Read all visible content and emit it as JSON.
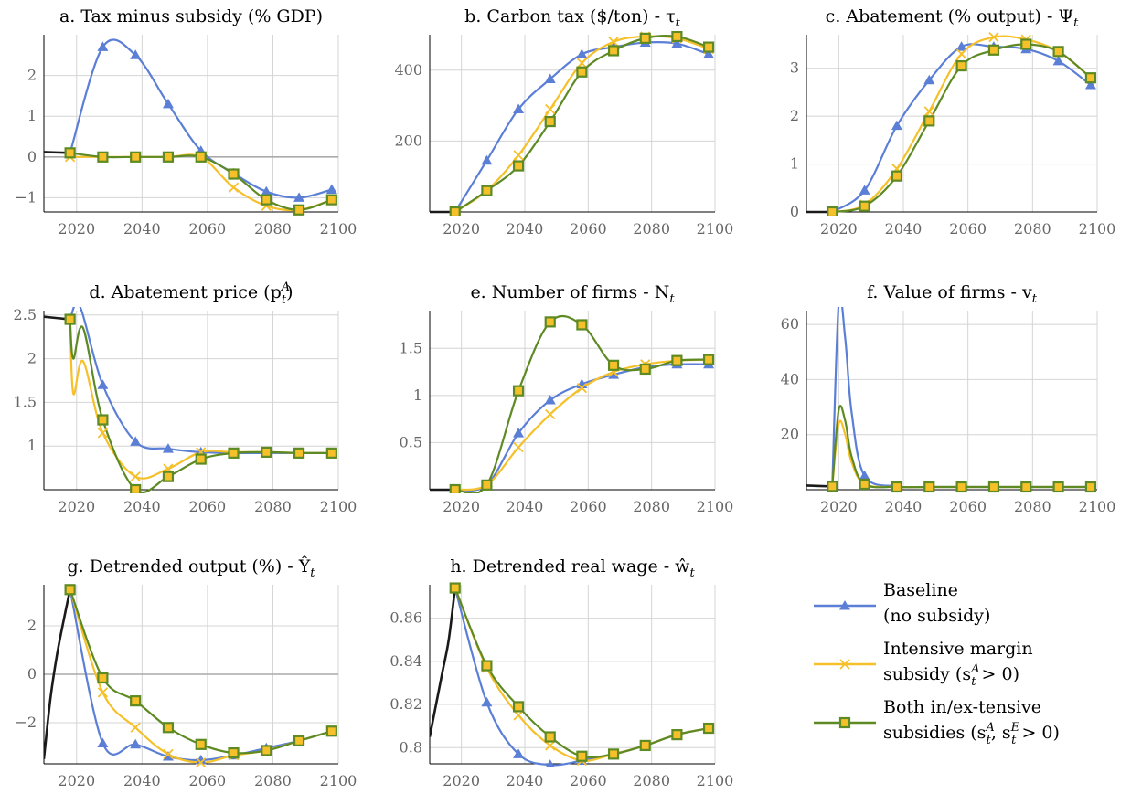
{
  "chart_data": [
    {
      "id": "a",
      "type": "line",
      "title": "a. Tax minus subsidy (% GDP)",
      "xlim": [
        2010,
        2100
      ],
      "ylim": [
        -1.35,
        3.0
      ],
      "xticks": [
        2020,
        2040,
        2060,
        2080,
        2100
      ],
      "yticks": [
        -1,
        0,
        1,
        2
      ],
      "ytick_labels": [
        "−1",
        "0",
        "1",
        "2"
      ],
      "zero_line": true,
      "history": {
        "x": [
          2010,
          2018
        ],
        "y": [
          0.12,
          0.1
        ]
      },
      "series": [
        {
          "key": "baseline",
          "x": [
            2018,
            2028,
            2038,
            2048,
            2058,
            2068,
            2078,
            2088,
            2098
          ],
          "y": [
            0.1,
            2.7,
            2.5,
            1.3,
            0.15,
            -0.4,
            -0.85,
            -1.0,
            -0.8
          ]
        },
        {
          "key": "intensive",
          "x": [
            2018,
            2028,
            2038,
            2048,
            2058,
            2068,
            2078,
            2088,
            2098
          ],
          "y": [
            0.0,
            0.0,
            0.0,
            0.0,
            0.0,
            -0.75,
            -1.2,
            -1.3,
            -1.05
          ]
        },
        {
          "key": "both",
          "x": [
            2018,
            2028,
            2038,
            2048,
            2058,
            2068,
            2078,
            2088,
            2098
          ],
          "y": [
            0.1,
            0.0,
            0.0,
            0.0,
            0.0,
            -0.42,
            -1.05,
            -1.3,
            -1.05
          ]
        }
      ]
    },
    {
      "id": "b",
      "type": "line",
      "title": "b. Carbon tax ($/ton) - τ",
      "title_sub": "t",
      "xlim": [
        2010,
        2100
      ],
      "ylim": [
        0,
        500
      ],
      "xticks": [
        2020,
        2040,
        2060,
        2080,
        2100
      ],
      "yticks": [
        200,
        400
      ],
      "ytick_labels": [
        "200",
        "400"
      ],
      "zero_line": false,
      "history": {
        "x": [
          2010,
          2018
        ],
        "y": [
          0,
          0
        ]
      },
      "series": [
        {
          "key": "baseline",
          "x": [
            2018,
            2028,
            2038,
            2048,
            2058,
            2068,
            2078,
            2088,
            2098
          ],
          "y": [
            0,
            145,
            290,
            375,
            445,
            465,
            478,
            475,
            445
          ]
        },
        {
          "key": "intensive",
          "x": [
            2018,
            2028,
            2038,
            2048,
            2058,
            2068,
            2078,
            2088,
            2098
          ],
          "y": [
            0,
            60,
            160,
            290,
            420,
            480,
            495,
            490,
            460
          ]
        },
        {
          "key": "both",
          "x": [
            2018,
            2028,
            2038,
            2048,
            2058,
            2068,
            2078,
            2088,
            2098
          ],
          "y": [
            0,
            60,
            130,
            255,
            395,
            455,
            490,
            495,
            465
          ]
        }
      ]
    },
    {
      "id": "c",
      "type": "line",
      "title": "c. Abatement (% output) - Ψ",
      "title_sub": "t",
      "xlim": [
        2010,
        2100
      ],
      "ylim": [
        0,
        3.7
      ],
      "xticks": [
        2020,
        2040,
        2060,
        2080,
        2100
      ],
      "yticks": [
        0,
        1,
        2,
        3
      ],
      "ytick_labels": [
        "0",
        "1",
        "2",
        "3"
      ],
      "zero_line": false,
      "history": {
        "x": [
          2010,
          2018
        ],
        "y": [
          0,
          0
        ]
      },
      "series": [
        {
          "key": "baseline",
          "x": [
            2018,
            2028,
            2038,
            2048,
            2058,
            2068,
            2078,
            2088,
            2098
          ],
          "y": [
            0,
            0.45,
            1.8,
            2.75,
            3.45,
            3.45,
            3.4,
            3.15,
            2.65
          ]
        },
        {
          "key": "intensive",
          "x": [
            2018,
            2028,
            2038,
            2048,
            2058,
            2068,
            2078,
            2088,
            2098
          ],
          "y": [
            0,
            0.15,
            0.9,
            2.1,
            3.3,
            3.65,
            3.6,
            3.35,
            2.8
          ]
        },
        {
          "key": "both",
          "x": [
            2018,
            2028,
            2038,
            2048,
            2058,
            2068,
            2078,
            2088,
            2098
          ],
          "y": [
            0,
            0.12,
            0.75,
            1.9,
            3.05,
            3.38,
            3.5,
            3.35,
            2.8
          ]
        }
      ]
    },
    {
      "id": "d",
      "type": "line",
      "title": "d. Abatement price (p",
      "title_sup": "A",
      "title_sub": "t",
      "title_tail": ")",
      "xlim": [
        2010,
        2100
      ],
      "ylim": [
        0.5,
        2.55
      ],
      "xticks": [
        2020,
        2040,
        2060,
        2080,
        2100
      ],
      "yticks": [
        1,
        1.5,
        2,
        2.5
      ],
      "ytick_labels": [
        "1",
        "1.5",
        "2",
        "2.5"
      ],
      "zero_line": false,
      "history": {
        "x": [
          2010,
          2018
        ],
        "y": [
          2.48,
          2.45
        ]
      },
      "series": [
        {
          "key": "baseline",
          "x": [
            2018,
            2021,
            2028,
            2038,
            2048,
            2058,
            2068,
            2078,
            2088,
            2098
          ],
          "y": [
            2.45,
            2.6,
            1.7,
            1.05,
            0.97,
            0.93,
            0.92,
            0.92,
            0.92,
            0.92
          ]
        },
        {
          "key": "intensive",
          "x": [
            2018,
            2019,
            2022,
            2028,
            2038,
            2048,
            2058,
            2068,
            2078,
            2088,
            2098
          ],
          "y": [
            2.45,
            1.6,
            1.97,
            1.15,
            0.65,
            0.74,
            0.93,
            0.93,
            0.93,
            0.92,
            0.92
          ]
        },
        {
          "key": "both",
          "x": [
            2018,
            2019,
            2022,
            2028,
            2038,
            2048,
            2058,
            2068,
            2078,
            2088,
            2098
          ],
          "y": [
            2.45,
            2.0,
            2.35,
            1.3,
            0.5,
            0.65,
            0.85,
            0.92,
            0.93,
            0.92,
            0.92
          ]
        }
      ]
    },
    {
      "id": "e",
      "type": "line",
      "title": "e. Number of firms - N",
      "title_sub": "t",
      "xlim": [
        2010,
        2100
      ],
      "ylim": [
        0,
        1.9
      ],
      "xticks": [
        2020,
        2040,
        2060,
        2080,
        2100
      ],
      "yticks": [
        0.5,
        1,
        1.5
      ],
      "ytick_labels": [
        "0.5",
        "1",
        "1.5"
      ],
      "zero_line": false,
      "history": {
        "x": [
          2010,
          2018
        ],
        "y": [
          0,
          0
        ]
      },
      "series": [
        {
          "key": "baseline",
          "x": [
            2018,
            2028,
            2038,
            2048,
            2058,
            2068,
            2078,
            2088,
            2098
          ],
          "y": [
            0,
            0.05,
            0.6,
            0.95,
            1.12,
            1.22,
            1.3,
            1.33,
            1.33
          ]
        },
        {
          "key": "intensive",
          "x": [
            2018,
            2028,
            2038,
            2048,
            2058,
            2068,
            2078,
            2088,
            2098
          ],
          "y": [
            0,
            0.05,
            0.45,
            0.8,
            1.08,
            1.25,
            1.33,
            1.37,
            1.38
          ]
        },
        {
          "key": "both",
          "x": [
            2018,
            2028,
            2038,
            2048,
            2058,
            2068,
            2078,
            2088,
            2098
          ],
          "y": [
            0,
            0.05,
            1.05,
            1.78,
            1.75,
            1.32,
            1.28,
            1.37,
            1.38
          ]
        }
      ]
    },
    {
      "id": "f",
      "type": "line",
      "title": "f. Value of firms - v",
      "title_sub": "t",
      "xlim": [
        2010,
        2100
      ],
      "ylim": [
        0,
        65
      ],
      "xticks": [
        2020,
        2040,
        2060,
        2080,
        2100
      ],
      "yticks": [
        20,
        40,
        60
      ],
      "ytick_labels": [
        "20",
        "40",
        "60"
      ],
      "zero_line": false,
      "history": {
        "x": [
          2010,
          2018
        ],
        "y": [
          1.5,
          1.2
        ]
      },
      "series": [
        {
          "key": "baseline",
          "x": [
            2018,
            2020,
            2022,
            2024,
            2028,
            2038,
            2048,
            2058,
            2068,
            2078,
            2088,
            2098
          ],
          "y": [
            1.2,
            68,
            55,
            28,
            5,
            1.2,
            1,
            1,
            1,
            1,
            1,
            1
          ]
        },
        {
          "key": "intensive",
          "x": [
            2018,
            2020,
            2022,
            2024,
            2028,
            2038,
            2048,
            2058,
            2068,
            2078,
            2088,
            2098
          ],
          "y": [
            1.2,
            24,
            20,
            10,
            2,
            1,
            1,
            1,
            1,
            1,
            1,
            1
          ]
        },
        {
          "key": "both",
          "x": [
            2018,
            2020,
            2022,
            2024,
            2028,
            2038,
            2048,
            2058,
            2068,
            2078,
            2088,
            2098
          ],
          "y": [
            1.2,
            29,
            25,
            12,
            2,
            1,
            1,
            1,
            1,
            1,
            1,
            1
          ]
        }
      ]
    },
    {
      "id": "g",
      "type": "line",
      "title": "g. Detrended output (%) - Ŷ",
      "title_sub": "t",
      "xlim": [
        2010,
        2100
      ],
      "ylim": [
        -3.7,
        3.7
      ],
      "xticks": [
        2020,
        2040,
        2060,
        2080,
        2100
      ],
      "yticks": [
        -2,
        0,
        2
      ],
      "ytick_labels": [
        "−2",
        "0",
        "2"
      ],
      "zero_line": true,
      "history": {
        "x": [
          2010,
          2012,
          2014,
          2016,
          2018
        ],
        "y": [
          -3.5,
          -1.0,
          0.8,
          2.2,
          3.5
        ]
      },
      "series": [
        {
          "key": "baseline",
          "x": [
            2018,
            2028,
            2038,
            2048,
            2058,
            2068,
            2078,
            2088,
            2098
          ],
          "y": [
            3.5,
            -2.85,
            -2.9,
            -3.4,
            -3.55,
            -3.35,
            -3.05,
            -2.75,
            -2.35
          ]
        },
        {
          "key": "intensive",
          "x": [
            2018,
            2028,
            2038,
            2048,
            2058,
            2068,
            2078,
            2088,
            2098
          ],
          "y": [
            3.5,
            -0.75,
            -2.2,
            -3.3,
            -3.65,
            -3.35,
            -3.15,
            -2.75,
            -2.35
          ]
        },
        {
          "key": "both",
          "x": [
            2018,
            2028,
            2038,
            2048,
            2058,
            2068,
            2078,
            2088,
            2098
          ],
          "y": [
            3.5,
            -0.15,
            -1.1,
            -2.2,
            -2.9,
            -3.25,
            -3.15,
            -2.75,
            -2.35
          ]
        }
      ]
    },
    {
      "id": "h",
      "type": "line",
      "title": "h. Detrended real wage - ŵ",
      "title_sub": "t",
      "xlim": [
        2010,
        2100
      ],
      "ylim": [
        0.7925,
        0.8755
      ],
      "xticks": [
        2020,
        2040,
        2060,
        2080,
        2100
      ],
      "yticks": [
        0.8,
        0.82,
        0.84,
        0.86
      ],
      "ytick_labels": [
        "0.8",
        "0.82",
        "0.84",
        "0.86"
      ],
      "zero_line": false,
      "history": {
        "x": [
          2010,
          2012,
          2014,
          2016,
          2018
        ],
        "y": [
          0.805,
          0.82,
          0.835,
          0.85,
          0.874
        ]
      },
      "series": [
        {
          "key": "baseline",
          "x": [
            2018,
            2028,
            2038,
            2048,
            2058,
            2068,
            2078,
            2088,
            2098
          ],
          "y": [
            0.874,
            0.821,
            0.797,
            0.792,
            0.794,
            0.797,
            0.801,
            0.806,
            0.809
          ]
        },
        {
          "key": "intensive",
          "x": [
            2018,
            2028,
            2038,
            2048,
            2058,
            2068,
            2078,
            2088,
            2098
          ],
          "y": [
            0.874,
            0.837,
            0.815,
            0.801,
            0.794,
            0.797,
            0.801,
            0.806,
            0.809
          ]
        },
        {
          "key": "both",
          "x": [
            2018,
            2028,
            2038,
            2048,
            2058,
            2068,
            2078,
            2088,
            2098
          ],
          "y": [
            0.874,
            0.838,
            0.819,
            0.805,
            0.796,
            0.797,
            0.801,
            0.806,
            0.809
          ]
        }
      ]
    }
  ],
  "legend": {
    "placement": "bottom-right",
    "items": [
      {
        "key": "baseline",
        "line1": "Baseline",
        "line2": "(no subsidy)"
      },
      {
        "key": "intensive",
        "line1": "Intensive margin",
        "line2": "subsidy (s",
        "line2_sup": "A",
        "line2_sub": "t",
        "line2_tail": " > 0)"
      },
      {
        "key": "both",
        "line1": "Both in/ex-tensive",
        "line2": "subsidies (s",
        "line2_sup": "A",
        "line2_sub": "t",
        "line2_mid": ", s",
        "line2_sup2": "E",
        "line2_sub2": "t",
        "line2_tail": " > 0)"
      }
    ]
  },
  "colors": {
    "baseline": "#5b7fd6",
    "intensive": "#f5c02a",
    "both": "#5e8a24",
    "history": "#1a1a1a"
  },
  "markers": {
    "baseline": "triangle",
    "intensive": "cross",
    "both": "square"
  }
}
